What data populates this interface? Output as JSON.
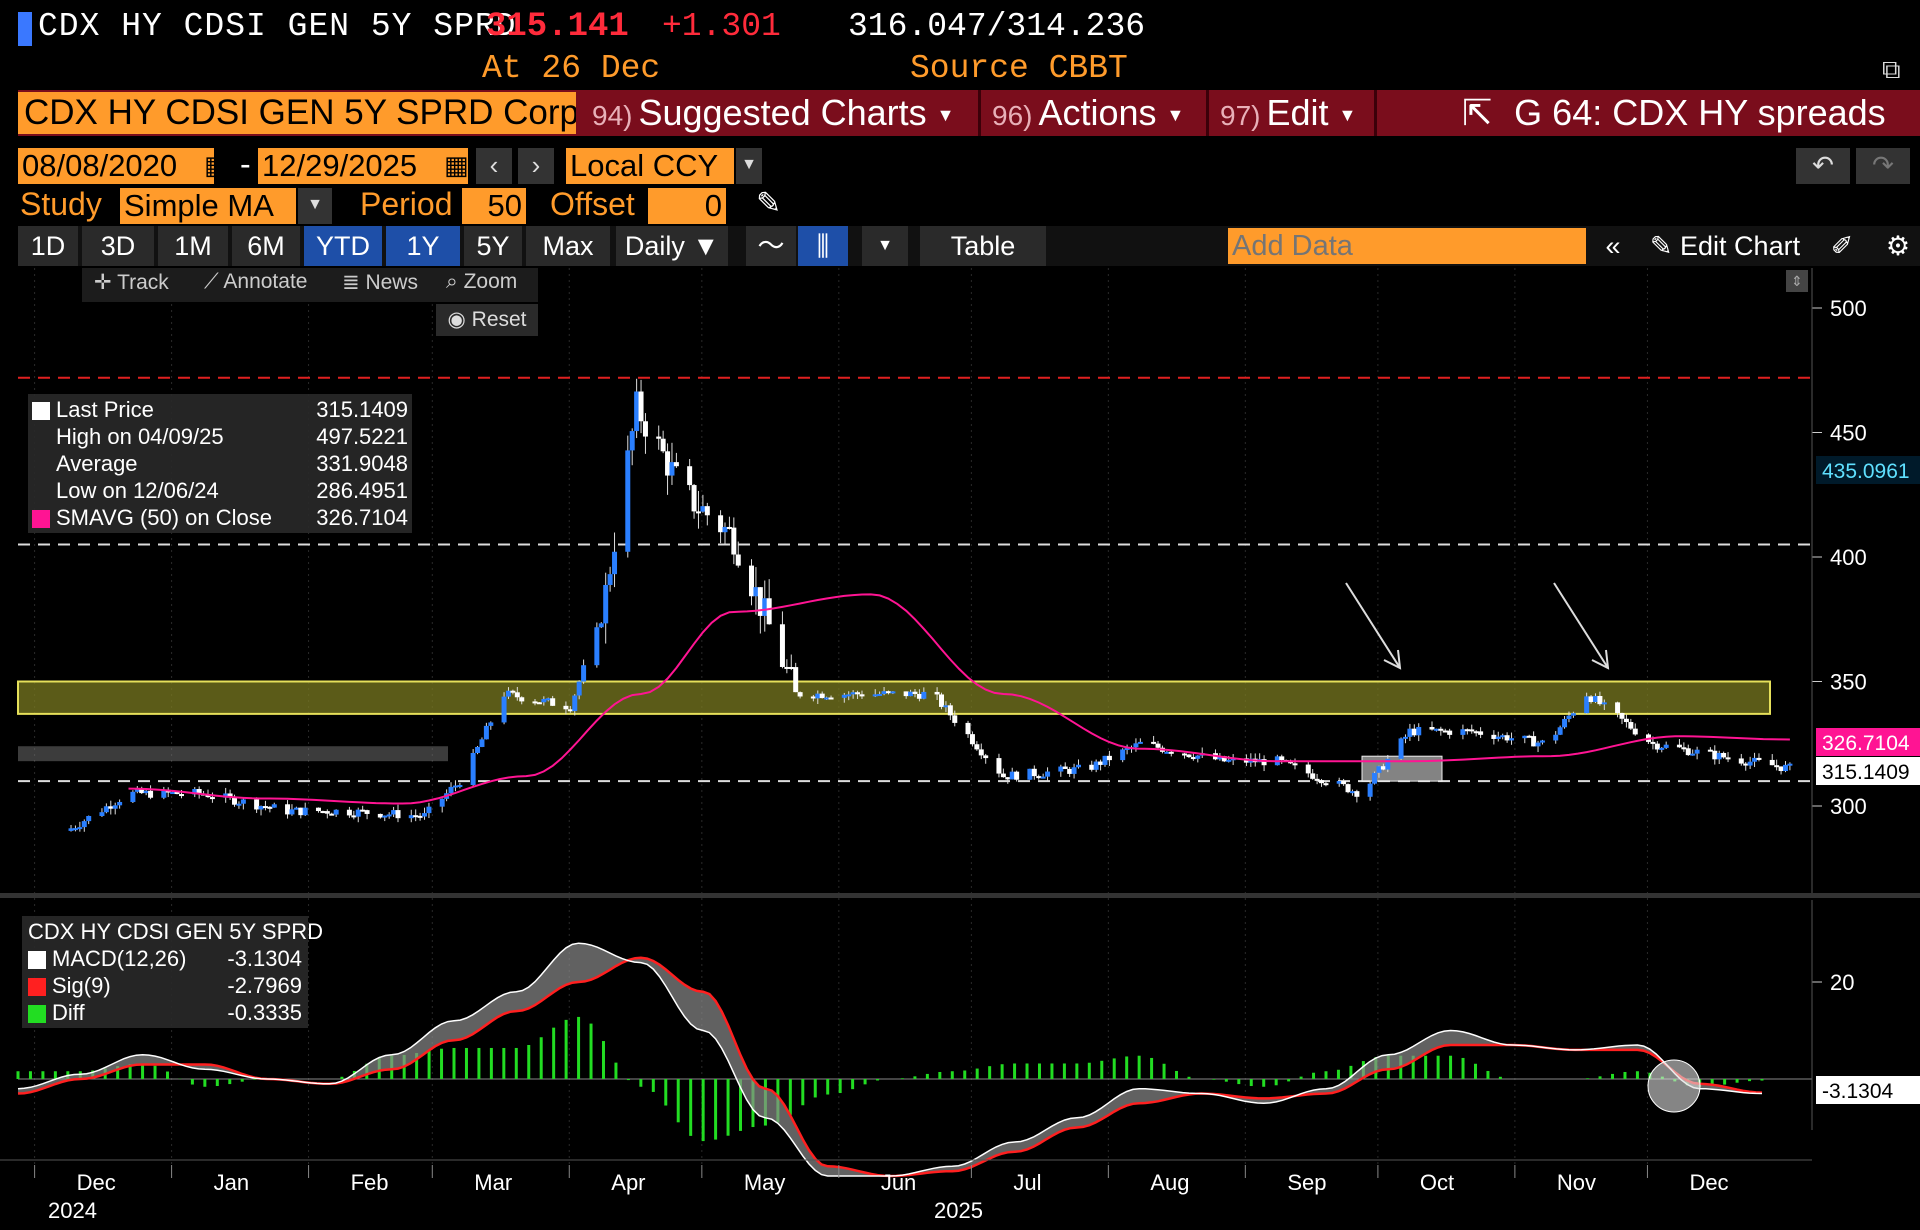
{
  "header": {
    "title": "CDX HY CDSI GEN 5Y SPRD",
    "last_price": "315.141",
    "change": "+1.301",
    "bid_ask": "316.047/314.236",
    "as_of": "At 26 Dec",
    "source": "Source CBBT"
  },
  "command_bar": {
    "ticker": "CDX HY CDSI GEN 5Y SPRD Corp",
    "menus": [
      {
        "num": "94)",
        "label": "Suggested Charts"
      },
      {
        "num": "96)",
        "label": "Actions"
      },
      {
        "num": "97)",
        "label": "Edit"
      }
    ],
    "saved_chart": "G 64: CDX HY spreads"
  },
  "controls": {
    "start_date": "08/08/2020",
    "date_dash": "-",
    "end_date": "12/29/2025",
    "currency": "Local CCY",
    "study_label": "Study",
    "study": "Simple MA",
    "period_label": "Period",
    "period": "50",
    "offset_label": "Offset",
    "offset": "0"
  },
  "toolbar": {
    "ranges": [
      "1D",
      "3D",
      "1M",
      "6M",
      "YTD",
      "1Y",
      "5Y",
      "Max"
    ],
    "active_ranges": [
      "YTD",
      "1Y"
    ],
    "frequency": "Daily ▼",
    "table": "Table",
    "add_data_placeholder": "Add Data",
    "edit_chart": "Edit Chart",
    "tools": [
      "Track",
      "Annotate",
      "News",
      "Zoom"
    ],
    "reset": "Reset"
  },
  "legend_main": [
    {
      "label": "Last Price",
      "value": "315.1409",
      "color": "#ffffff"
    },
    {
      "label": "High on 04/09/25",
      "value": "497.5221",
      "color": "#bbbbbb"
    },
    {
      "label": "Average",
      "value": "331.9048",
      "color": "#bbbbbb"
    },
    {
      "label": "Low on 12/06/24",
      "value": "286.4951",
      "color": "#bbbbbb"
    },
    {
      "label": "SMAVG (50)  on Close",
      "value": "326.7104",
      "color": "#ff1493"
    }
  ],
  "legend_macd": {
    "title": "CDX HY CDSI GEN 5Y SPRD",
    "rows": [
      {
        "label": "MACD(12,26)",
        "value": "-3.1304",
        "color": "#ffffff"
      },
      {
        "label": "Sig(9)",
        "value": "-2.7969",
        "color": "#ff2020"
      },
      {
        "label": "Diff",
        "value": "-0.3335",
        "color": "#22dd22"
      }
    ]
  },
  "chart_data": [
    {
      "type": "candlestick",
      "series": [
        {
          "name": "CDX HY CDSI GEN 5Y SPRD",
          "month_points": [
            {
              "date": "2024-12-01",
              "close": 290
            },
            {
              "date": "2024-12-15",
              "close": 305
            },
            {
              "date": "2025-01-01",
              "close": 305
            },
            {
              "date": "2025-01-20",
              "close": 298
            },
            {
              "date": "2025-02-01",
              "close": 298
            },
            {
              "date": "2025-02-20",
              "close": 296
            },
            {
              "date": "2025-03-01",
              "close": 312
            },
            {
              "date": "2025-03-10",
              "close": 345
            },
            {
              "date": "2025-03-25",
              "close": 340
            },
            {
              "date": "2025-04-01",
              "close": 375
            },
            {
              "date": "2025-04-09",
              "close": 460
            },
            {
              "date": "2025-04-20",
              "close": 425
            },
            {
              "date": "2025-05-01",
              "close": 408
            },
            {
              "date": "2025-05-15",
              "close": 345
            },
            {
              "date": "2025-06-01",
              "close": 345
            },
            {
              "date": "2025-06-15",
              "close": 345
            },
            {
              "date": "2025-07-01",
              "close": 312
            },
            {
              "date": "2025-07-20",
              "close": 315
            },
            {
              "date": "2025-08-01",
              "close": 325
            },
            {
              "date": "2025-08-20",
              "close": 318
            },
            {
              "date": "2025-09-01",
              "close": 318
            },
            {
              "date": "2025-09-20",
              "close": 305
            },
            {
              "date": "2025-10-01",
              "close": 330
            },
            {
              "date": "2025-10-15",
              "close": 330
            },
            {
              "date": "2025-11-01",
              "close": 325
            },
            {
              "date": "2025-11-10",
              "close": 345
            },
            {
              "date": "2025-11-25",
              "close": 325
            },
            {
              "date": "2025-12-10",
              "close": 320
            },
            {
              "date": "2025-12-26",
              "close": 315.14
            }
          ]
        },
        {
          "name": "SMAVG (50)  on Close",
          "points": [
            {
              "date": "2024-12-15",
              "value": 307
            },
            {
              "date": "2025-01-15",
              "value": 303
            },
            {
              "date": "2025-02-15",
              "value": 301
            },
            {
              "date": "2025-03-15",
              "value": 312
            },
            {
              "date": "2025-04-10",
              "value": 345
            },
            {
              "date": "2025-05-01",
              "value": 378
            },
            {
              "date": "2025-06-01",
              "value": 385
            },
            {
              "date": "2025-07-01",
              "value": 345
            },
            {
              "date": "2025-08-01",
              "value": 323
            },
            {
              "date": "2025-09-01",
              "value": 318
            },
            {
              "date": "2025-10-01",
              "value": 318
            },
            {
              "date": "2025-11-01",
              "value": 320
            },
            {
              "date": "2025-12-01",
              "value": 328
            },
            {
              "date": "2025-12-26",
              "value": 326.71
            }
          ]
        }
      ],
      "y_ticks": [
        300,
        350,
        400,
        450,
        500
      ],
      "ylim": [
        275,
        510
      ],
      "reference_lines": [
        {
          "value": 472,
          "style": "red dashed"
        },
        {
          "value": 405,
          "style": "white dashed"
        },
        {
          "value": 310,
          "style": "white dashed"
        }
      ],
      "zones": [
        {
          "from": 337,
          "to": 350,
          "color": "#7a7a20"
        }
      ],
      "markers": {
        "last_price": "315.1409",
        "sma": "326.7104",
        "crosshair": "435.0961"
      }
    },
    {
      "type": "macd",
      "y_ticks": [
        20
      ],
      "markers": {
        "macd": "-3.1304"
      },
      "series": [
        {
          "name": "MACD(12,26)",
          "values": [
            -2,
            1,
            5,
            2,
            0,
            -1,
            5,
            12,
            18,
            28,
            24,
            10,
            -8,
            -20,
            -20,
            -18,
            -13,
            -8,
            -2,
            -3,
            -5,
            -2,
            5,
            10,
            7,
            6,
            7,
            -2,
            -3
          ]
        },
        {
          "name": "Sig(9)",
          "values": [
            -3,
            0,
            3,
            3,
            0,
            -1,
            2,
            8,
            14,
            20,
            25,
            18,
            -2,
            -18,
            -20,
            -19,
            -15,
            -10,
            -5,
            -3,
            -4,
            -3,
            2,
            7,
            7,
            6,
            6,
            -1,
            -2.8
          ]
        }
      ]
    }
  ],
  "x_axis": {
    "months": [
      "Dec",
      "Jan",
      "Feb",
      "Mar",
      "Apr",
      "May",
      "Jun",
      "Jul",
      "Aug",
      "Sep",
      "Oct",
      "Nov",
      "Dec"
    ],
    "year_left": "2024",
    "year_mid": "2025"
  }
}
